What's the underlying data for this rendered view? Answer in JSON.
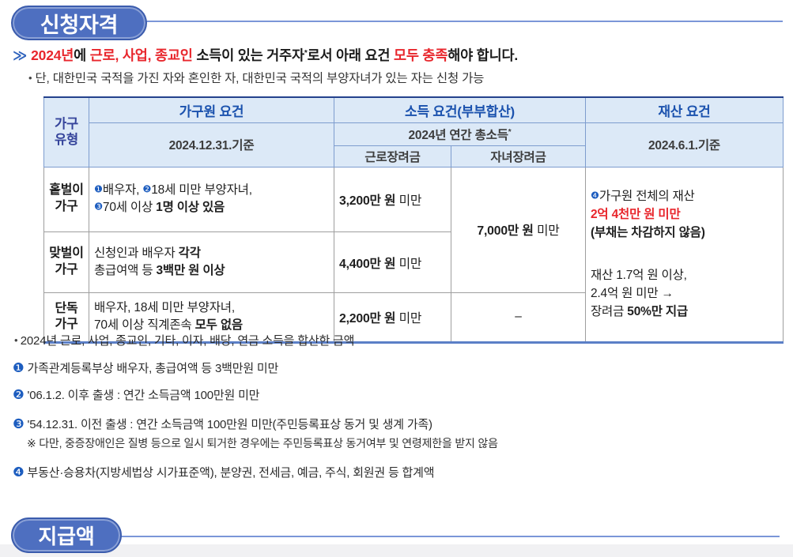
{
  "sections": {
    "eligibility": "신청자격",
    "payment": "지급액"
  },
  "intro": {
    "chevron": "≫",
    "line1_runs": [
      {
        "t": "2024년",
        "s": "red"
      },
      {
        "t": "에 "
      },
      {
        "t": "근로, 사업, 종교인",
        "s": "red"
      },
      {
        "t": " 소득이 있는 거주자"
      },
      {
        "t": "*",
        "s": "sup"
      },
      {
        "t": "로서 아래 요건 "
      },
      {
        "t": "모두 충족",
        "s": "red"
      },
      {
        "t": "해야 합니다."
      }
    ],
    "line2_bullet": "•",
    "line2": "단, 대한민국 국적을 가진 자와 혼인한 자, 대한민국 국적의 부양자녀가 있는 자는 신청 가능"
  },
  "table": {
    "headers": {
      "household_type": "가구\n유형",
      "member_req": "가구원 요건",
      "member_req_date": "2024.12.31.기준",
      "income_req": "소득 요건(부부합산)",
      "income_year_runs": [
        {
          "t": "2024년 연간 총소득"
        },
        {
          "t": "*",
          "s": "sup"
        }
      ],
      "work_credit": "근로장려금",
      "child_credit": "자녀장려금",
      "property_req": "재산 요건",
      "property_date": "2024.6.1.기준"
    },
    "rows": [
      {
        "label": "홑벌이\n가구",
        "member_runs": [
          {
            "t": "❶",
            "s": "num"
          },
          {
            "t": "배우자, "
          },
          {
            "t": "❷",
            "s": "num"
          },
          {
            "t": "18세 미만 부양자녀,\n"
          },
          {
            "t": "❸",
            "s": "num"
          },
          {
            "t": "70세 이상 "
          },
          {
            "t": "1명 이상 있음",
            "s": "b"
          }
        ],
        "income_runs": [
          {
            "t": "3,200만 원",
            "s": "b"
          },
          {
            "t": " 미만"
          }
        ]
      },
      {
        "label": "맞벌이\n가구",
        "member_runs": [
          {
            "t": "신청인과 배우자 "
          },
          {
            "t": "각각",
            "s": "b"
          },
          {
            "t": "\n총급여액 등 "
          },
          {
            "t": "3백만 원 이상",
            "s": "b"
          }
        ],
        "income_runs": [
          {
            "t": "4,400만 원",
            "s": "b"
          },
          {
            "t": " 미만"
          }
        ]
      },
      {
        "label": "단독\n가구",
        "member_runs": [
          {
            "t": "배우자, 18세 미만 부양자녀,\n70세 이상 직계존속 "
          },
          {
            "t": "모두 없음",
            "s": "b"
          }
        ],
        "income_runs": [
          {
            "t": "2,200만 원",
            "s": "b"
          },
          {
            "t": " 미만"
          }
        ]
      }
    ],
    "child_credit_runs": [
      {
        "t": "7,000만 원",
        "s": "b"
      },
      {
        "t": " 미만"
      }
    ],
    "child_credit_none": "–",
    "property_runs_top": [
      {
        "t": "❹",
        "s": "num"
      },
      {
        "t": "가구원 전체의 재산\n"
      },
      {
        "t": "2억 4천만 원 미만",
        "s": "redb"
      },
      {
        "t": "\n"
      },
      {
        "t": "(부채는 차감하지 않음)",
        "s": "b"
      }
    ],
    "property_runs_bottom": [
      {
        "t": "재산 1.7억 원 이상,\n2.4억 원 미만 →\n장려금 "
      },
      {
        "t": "50%만 지급",
        "s": "b"
      }
    ]
  },
  "footnotes": {
    "star_runs": [
      {
        "t": "• ",
        "s": "bullet"
      },
      {
        "t": "2024년 근로, 사업, 종교인, 기타, 이자, 배당, 연금 소득을 합산한 금액"
      }
    ],
    "n1_runs": [
      {
        "t": "❶",
        "s": "fnum"
      },
      {
        "t": " 가족관계등록부상 배우자, 총급여액 등 3백만원 미만"
      }
    ],
    "n2_runs": [
      {
        "t": "❷",
        "s": "fnum"
      },
      {
        "t": " '06.1.2. 이후 출생 : 연간 소득금액 100만원 미만"
      }
    ],
    "n3_runs": [
      {
        "t": "❸",
        "s": "fnum"
      },
      {
        "t": " '54.12.31. 이전 출생 : 연간 소득금액 100만원 미만(주민등록표상 동거 및 생계 가족)"
      }
    ],
    "n3_sub": "※ 다만, 중증장애인은 질병 등으로 일시 퇴거한 경우에는 주민등록표상 동거여부 및 연령제한을 받지 않음",
    "n4_runs": [
      {
        "t": "❹",
        "s": "fnum"
      },
      {
        "t": " 부동산·승용차(지방세법상 시가표준액), 분양권, 전세금, 예금, 주식, 회원권 등 합계액"
      }
    ]
  },
  "colors": {
    "accent_blue": "#4e6fc0",
    "divider_blue": "#7b96d8",
    "header_text_blue": "#1b52ae",
    "circled_number_blue": "#1d5dbf",
    "red": "#e8262c",
    "header_bg": "#dce9f7"
  }
}
